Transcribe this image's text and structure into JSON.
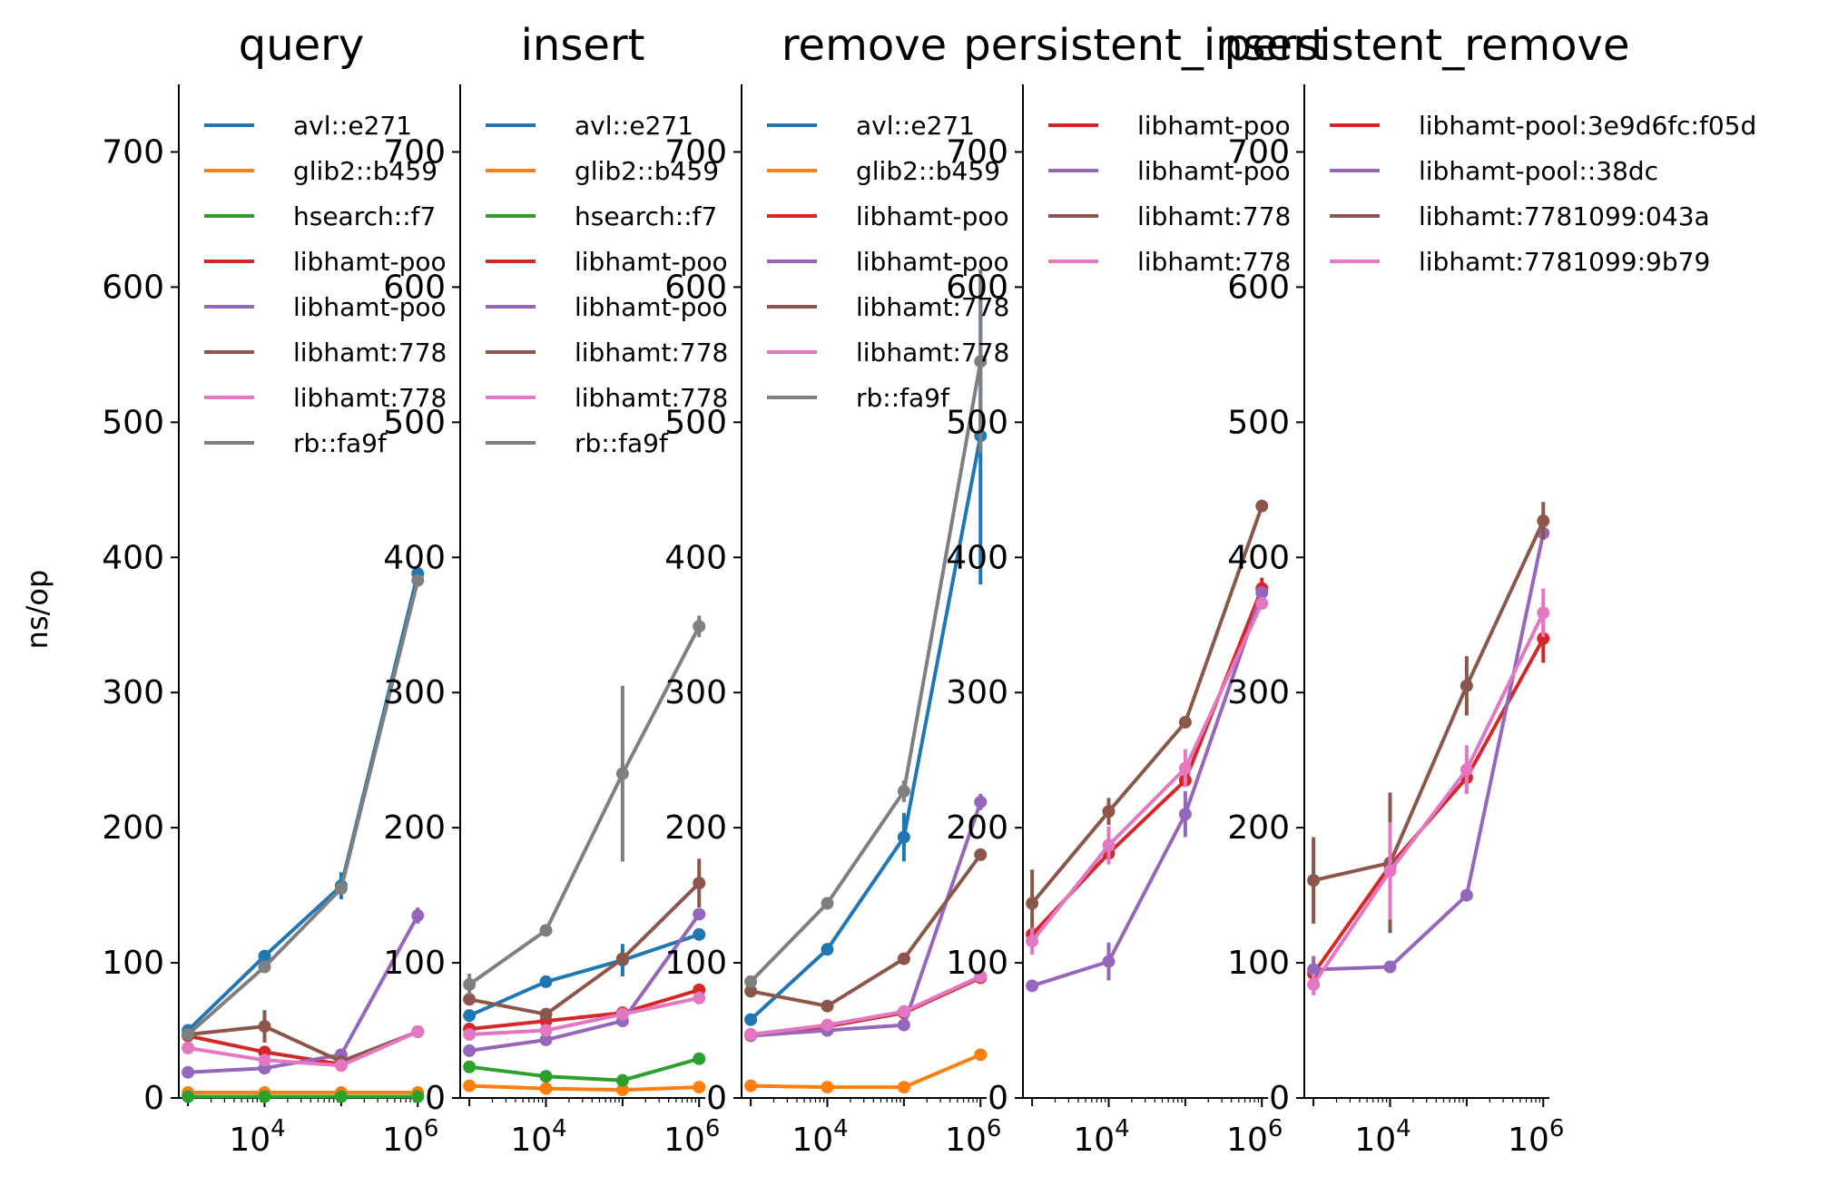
{
  "ylabel": "ns/op",
  "colors": {
    "avl::e271": "#1f77b4",
    "glib2::b459": "#ff7f0e",
    "hsearch::f7": "#2ca02c",
    "libhamt-pool:3e9d6fc:f05d": "#d62728",
    "libhamt-pool::38dc": "#9467bd",
    "libhamt:7781099:043a": "#8c564b",
    "libhamt:7781099:9b79": "#e377c2",
    "rb::fa9f": "#7f7f7f"
  },
  "chart_data": [
    {
      "type": "line",
      "title": "query",
      "xscale": "log",
      "xticks": [
        {
          "value": 10000,
          "base": "10",
          "exp": "4"
        },
        {
          "value": 1000000,
          "base": "10",
          "exp": "6"
        }
      ],
      "ylim": [
        0,
        750
      ],
      "yticks": [
        "0",
        "100",
        "200",
        "300",
        "400",
        "500",
        "600",
        "700"
      ],
      "legend_labels": [
        "avl::e271",
        "glib2::b459",
        "hsearch::f7",
        "libhamt-poo",
        "libhamt-poo",
        "libhamt:778",
        "libhamt:778",
        "rb::fa9f"
      ],
      "series": [
        {
          "key": "avl::e271",
          "x": [
            1000,
            10000,
            100000,
            1000000
          ],
          "y": [
            50,
            105,
            157,
            388
          ],
          "err": [
            0,
            0,
            10,
            0
          ]
        },
        {
          "key": "glib2::b459",
          "x": [
            1000,
            10000,
            100000,
            1000000
          ],
          "y": [
            4,
            4,
            4,
            4
          ],
          "err": [
            0,
            0,
            0,
            0
          ]
        },
        {
          "key": "hsearch::f7",
          "x": [
            1000,
            10000,
            100000,
            1000000
          ],
          "y": [
            1,
            1,
            1,
            1
          ],
          "err": [
            0,
            0,
            0,
            0
          ]
        },
        {
          "key": "libhamt-pool:3e9d6fc:f05d",
          "x": [
            1000,
            10000,
            100000,
            1000000
          ],
          "y": [
            46,
            34,
            25,
            49
          ],
          "err": [
            0,
            0,
            0,
            0
          ]
        },
        {
          "key": "libhamt-pool::38dc",
          "x": [
            1000,
            10000,
            100000,
            1000000
          ],
          "y": [
            19,
            22,
            32,
            135
          ],
          "err": [
            0,
            0,
            0,
            6
          ]
        },
        {
          "key": "libhamt:7781099:043a",
          "x": [
            1000,
            10000,
            100000,
            1000000
          ],
          "y": [
            47,
            53,
            27,
            49
          ],
          "err": [
            0,
            12,
            0,
            0
          ]
        },
        {
          "key": "libhamt:7781099:9b79",
          "x": [
            1000,
            10000,
            100000,
            1000000
          ],
          "y": [
            37,
            28,
            24,
            49
          ],
          "err": [
            0,
            0,
            0,
            0
          ]
        },
        {
          "key": "rb::fa9f",
          "x": [
            1000,
            10000,
            100000,
            1000000
          ],
          "y": [
            47,
            97,
            155,
            383
          ],
          "err": [
            0,
            0,
            0,
            0
          ]
        }
      ]
    },
    {
      "type": "line",
      "title": "insert",
      "xscale": "log",
      "xticks": [
        {
          "value": 10000,
          "base": "10",
          "exp": "4"
        },
        {
          "value": 1000000,
          "base": "10",
          "exp": "6"
        }
      ],
      "ylim": [
        0,
        750
      ],
      "yticks": [
        "0",
        "100",
        "200",
        "300",
        "400",
        "500",
        "600",
        "700"
      ],
      "legend_labels": [
        "avl::e271",
        "glib2::b459",
        "hsearch::f7",
        "libhamt-poo",
        "libhamt-poo",
        "libhamt:778",
        "libhamt:778",
        "rb::fa9f"
      ],
      "series": [
        {
          "key": "avl::e271",
          "x": [
            1000,
            10000,
            100000,
            1000000
          ],
          "y": [
            61,
            86,
            102,
            121
          ],
          "err": [
            0,
            0,
            12,
            0
          ]
        },
        {
          "key": "glib2::b459",
          "x": [
            1000,
            10000,
            100000,
            1000000
          ],
          "y": [
            9,
            7,
            6,
            8
          ],
          "err": [
            0,
            0,
            0,
            0
          ]
        },
        {
          "key": "hsearch::f7",
          "x": [
            1000,
            10000,
            100000,
            1000000
          ],
          "y": [
            23,
            16,
            13,
            29
          ],
          "err": [
            0,
            0,
            0,
            0
          ]
        },
        {
          "key": "libhamt-pool:3e9d6fc:f05d",
          "x": [
            1000,
            10000,
            100000,
            1000000
          ],
          "y": [
            51,
            57,
            63,
            80
          ],
          "err": [
            0,
            0,
            0,
            0
          ]
        },
        {
          "key": "libhamt-pool::38dc",
          "x": [
            1000,
            10000,
            100000,
            1000000
          ],
          "y": [
            35,
            43,
            57,
            136
          ],
          "err": [
            0,
            0,
            0,
            0
          ]
        },
        {
          "key": "libhamt:7781099:043a",
          "x": [
            1000,
            10000,
            100000,
            1000000
          ],
          "y": [
            73,
            62,
            103,
            159
          ],
          "err": [
            0,
            0,
            0,
            18
          ]
        },
        {
          "key": "libhamt:7781099:9b79",
          "x": [
            1000,
            10000,
            100000,
            1000000
          ],
          "y": [
            47,
            50,
            62,
            74
          ],
          "err": [
            0,
            0,
            0,
            0
          ]
        },
        {
          "key": "rb::fa9f",
          "x": [
            1000,
            10000,
            100000,
            1000000
          ],
          "y": [
            84,
            124,
            240,
            349
          ],
          "err": [
            8,
            0,
            65,
            8
          ]
        }
      ]
    },
    {
      "type": "line",
      "title": "remove",
      "xscale": "log",
      "xticks": [
        {
          "value": 10000,
          "base": "10",
          "exp": "4"
        },
        {
          "value": 1000000,
          "base": "10",
          "exp": "6"
        }
      ],
      "ylim": [
        0,
        750
      ],
      "yticks": [
        "0",
        "100",
        "200",
        "300",
        "400",
        "500",
        "600",
        "700"
      ],
      "legend_labels": [
        "avl::e271",
        "glib2::b459",
        "libhamt-poo",
        "libhamt-poo",
        "libhamt:778",
        "libhamt:778",
        "rb::fa9f"
      ],
      "series": [
        {
          "key": "avl::e271",
          "x": [
            1000,
            10000,
            100000,
            1000000
          ],
          "y": [
            58,
            110,
            193,
            490
          ],
          "err": [
            0,
            0,
            18,
            110
          ]
        },
        {
          "key": "glib2::b459",
          "x": [
            1000,
            10000,
            100000,
            1000000
          ],
          "y": [
            9,
            8,
            8,
            32
          ],
          "err": [
            0,
            0,
            0,
            0
          ]
        },
        {
          "key": "libhamt-pool:3e9d6fc:f05d",
          "x": [
            1000,
            10000,
            100000,
            1000000
          ],
          "y": [
            47,
            53,
            63,
            89
          ],
          "err": [
            0,
            0,
            0,
            0
          ]
        },
        {
          "key": "libhamt-pool::38dc",
          "x": [
            1000,
            10000,
            100000,
            1000000
          ],
          "y": [
            46,
            50,
            54,
            219
          ],
          "err": [
            0,
            0,
            0,
            6
          ]
        },
        {
          "key": "libhamt:7781099:043a",
          "x": [
            1000,
            10000,
            100000,
            1000000
          ],
          "y": [
            79,
            68,
            103,
            180
          ],
          "err": [
            0,
            0,
            0,
            0
          ]
        },
        {
          "key": "libhamt:7781099:9b79",
          "x": [
            1000,
            10000,
            100000,
            1000000
          ],
          "y": [
            47,
            54,
            64,
            90
          ],
          "err": [
            0,
            0,
            0,
            0
          ]
        },
        {
          "key": "rb::fa9f",
          "x": [
            1000,
            10000,
            100000,
            1000000
          ],
          "y": [
            86,
            144,
            227,
            545
          ],
          "err": [
            0,
            0,
            8,
            68
          ]
        }
      ]
    },
    {
      "type": "line",
      "title": "persistent_insert",
      "xscale": "log",
      "xticks": [
        {
          "value": 10000,
          "base": "10",
          "exp": "4"
        },
        {
          "value": 1000000,
          "base": "10",
          "exp": "6"
        }
      ],
      "ylim": [
        0,
        750
      ],
      "yticks": [
        "0",
        "100",
        "200",
        "300",
        "400",
        "500",
        "600",
        "700"
      ],
      "legend_labels": [
        "libhamt-poo",
        "libhamt-poo",
        "libhamt:778",
        "libhamt:778"
      ],
      "series": [
        {
          "key": "libhamt-pool:3e9d6fc:f05d",
          "x": [
            1000,
            10000,
            100000,
            1000000
          ],
          "y": [
            121,
            181,
            235,
            377
          ],
          "err": [
            0,
            8,
            0,
            8
          ]
        },
        {
          "key": "libhamt-pool::38dc",
          "x": [
            1000,
            10000,
            100000,
            1000000
          ],
          "y": [
            83,
            101,
            210,
            374
          ],
          "err": [
            0,
            14,
            17,
            0
          ]
        },
        {
          "key": "libhamt:7781099:043a",
          "x": [
            1000,
            10000,
            100000,
            1000000
          ],
          "y": [
            144,
            212,
            278,
            438
          ],
          "err": [
            25,
            10,
            0,
            0
          ]
        },
        {
          "key": "libhamt:7781099:9b79",
          "x": [
            1000,
            10000,
            100000,
            1000000
          ],
          "y": [
            116,
            187,
            244,
            366
          ],
          "err": [
            10,
            14,
            14,
            0
          ]
        }
      ]
    },
    {
      "type": "line",
      "title": "persistent_remove",
      "xscale": "log",
      "xticks": [
        {
          "value": 10000,
          "base": "10",
          "exp": "4"
        },
        {
          "value": 1000000,
          "base": "10",
          "exp": "6"
        }
      ],
      "ylim": [
        0,
        750
      ],
      "yticks": [
        "0",
        "100",
        "200",
        "300",
        "400",
        "500",
        "600",
        "700"
      ],
      "legend_labels": [
        "libhamt-pool:3e9d6fc:f05d",
        "libhamt-pool::38dc",
        "libhamt:7781099:043a",
        "libhamt:7781099:9b79"
      ],
      "series": [
        {
          "key": "libhamt-pool:3e9d6fc:f05d",
          "x": [
            1000,
            10000,
            100000,
            1000000
          ],
          "y": [
            92,
            172,
            237,
            340
          ],
          "err": [
            0,
            0,
            12,
            18
          ]
        },
        {
          "key": "libhamt-pool::38dc",
          "x": [
            1000,
            10000,
            100000,
            1000000
          ],
          "y": [
            95,
            97,
            150,
            418
          ],
          "err": [
            10,
            0,
            0,
            0
          ]
        },
        {
          "key": "libhamt:7781099:043a",
          "x": [
            1000,
            10000,
            100000,
            1000000
          ],
          "y": [
            161,
            174,
            305,
            427
          ],
          "err": [
            32,
            52,
            22,
            14
          ]
        },
        {
          "key": "libhamt:7781099:9b79",
          "x": [
            1000,
            10000,
            100000,
            1000000
          ],
          "y": [
            84,
            168,
            243,
            359
          ],
          "err": [
            8,
            36,
            18,
            18
          ]
        }
      ]
    }
  ]
}
